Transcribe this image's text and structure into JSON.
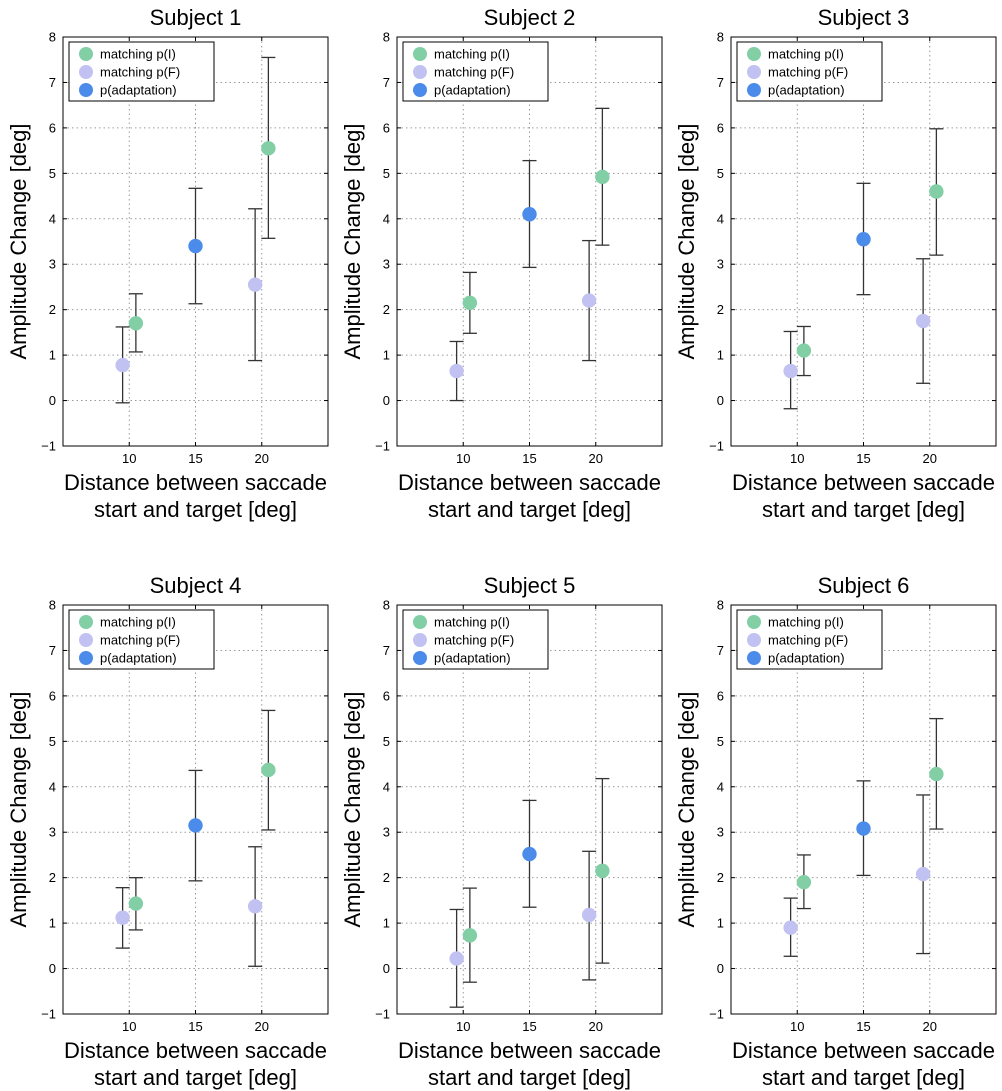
{
  "figure": {
    "xlabel_line1": "Distance between saccade",
    "xlabel_line2": "start and target [deg]",
    "ylabel": "Amplitude Change [deg]"
  },
  "colors": {
    "matching_pI": "#82cfa6",
    "matching_pF": "#c2c2f2",
    "p_adaptation": "#4b8bea",
    "errorbar": "#333333",
    "grid": "#9a9a9a"
  },
  "chart_data": [
    {
      "type": "scatter",
      "title": "Subject 1",
      "xlabel": "Distance between saccade start and target [deg]",
      "ylabel": "Amplitude Change [deg]",
      "xlim": [
        5,
        25
      ],
      "ylim": [
        -1,
        8
      ],
      "xticks": [
        10,
        15,
        20
      ],
      "yticks": [
        -1,
        0,
        1,
        2,
        3,
        4,
        5,
        6,
        7,
        8
      ],
      "grid": true,
      "legend_position": "top-left",
      "series": [
        {
          "name": "matching p(I)",
          "points": [
            {
              "x": 10.5,
              "y": 1.7,
              "lo": 1.07,
              "hi": 2.35
            },
            {
              "x": 20.5,
              "y": 5.55,
              "lo": 3.57,
              "hi": 7.55
            }
          ]
        },
        {
          "name": "matching p(F)",
          "points": [
            {
              "x": 9.5,
              "y": 0.78,
              "lo": -0.05,
              "hi": 1.62
            },
            {
              "x": 19.5,
              "y": 2.55,
              "lo": 0.88,
              "hi": 4.22
            }
          ]
        },
        {
          "name": "p(adaptation)",
          "points": [
            {
              "x": 15,
              "y": 3.4,
              "lo": 2.13,
              "hi": 4.67
            }
          ]
        }
      ]
    },
    {
      "type": "scatter",
      "title": "Subject 2",
      "xlabel": "Distance between saccade start and target [deg]",
      "ylabel": "Amplitude Change [deg]",
      "xlim": [
        5,
        25
      ],
      "ylim": [
        -1,
        8
      ],
      "xticks": [
        10,
        15,
        20
      ],
      "yticks": [
        -1,
        0,
        1,
        2,
        3,
        4,
        5,
        6,
        7,
        8
      ],
      "grid": true,
      "legend_position": "top-left",
      "series": [
        {
          "name": "matching p(I)",
          "points": [
            {
              "x": 10.5,
              "y": 2.15,
              "lo": 1.48,
              "hi": 2.82
            },
            {
              "x": 20.5,
              "y": 4.92,
              "lo": 3.42,
              "hi": 6.43
            }
          ]
        },
        {
          "name": "matching p(F)",
          "points": [
            {
              "x": 9.5,
              "y": 0.65,
              "lo": 0.0,
              "hi": 1.3
            },
            {
              "x": 19.5,
              "y": 2.2,
              "lo": 0.88,
              "hi": 3.52
            }
          ]
        },
        {
          "name": "p(adaptation)",
          "points": [
            {
              "x": 15,
              "y": 4.1,
              "lo": 2.93,
              "hi": 5.28
            }
          ]
        }
      ]
    },
    {
      "type": "scatter",
      "title": "Subject 3",
      "xlabel": "Distance between saccade start and target [deg]",
      "ylabel": "Amplitude Change [deg]",
      "xlim": [
        5,
        25
      ],
      "ylim": [
        -1,
        8
      ],
      "xticks": [
        10,
        15,
        20
      ],
      "yticks": [
        -1,
        0,
        1,
        2,
        3,
        4,
        5,
        6,
        7,
        8
      ],
      "grid": true,
      "legend_position": "top-left",
      "series": [
        {
          "name": "matching p(I)",
          "points": [
            {
              "x": 10.5,
              "y": 1.1,
              "lo": 0.55,
              "hi": 1.63
            },
            {
              "x": 20.5,
              "y": 4.6,
              "lo": 3.2,
              "hi": 5.98
            }
          ]
        },
        {
          "name": "matching p(F)",
          "points": [
            {
              "x": 9.5,
              "y": 0.65,
              "lo": -0.18,
              "hi": 1.52
            },
            {
              "x": 19.5,
              "y": 1.75,
              "lo": 0.38,
              "hi": 3.12
            }
          ]
        },
        {
          "name": "p(adaptation)",
          "points": [
            {
              "x": 15,
              "y": 3.55,
              "lo": 2.33,
              "hi": 4.78
            }
          ]
        }
      ]
    },
    {
      "type": "scatter",
      "title": "Subject 4",
      "xlabel": "Distance between saccade start and target [deg]",
      "ylabel": "Amplitude Change [deg]",
      "xlim": [
        5,
        25
      ],
      "ylim": [
        -1,
        8
      ],
      "xticks": [
        10,
        15,
        20
      ],
      "yticks": [
        -1,
        0,
        1,
        2,
        3,
        4,
        5,
        6,
        7,
        8
      ],
      "grid": true,
      "legend_position": "top-left",
      "series": [
        {
          "name": "matching p(I)",
          "points": [
            {
              "x": 10.5,
              "y": 1.43,
              "lo": 0.85,
              "hi": 2.0
            },
            {
              "x": 20.5,
              "y": 4.37,
              "lo": 3.05,
              "hi": 5.68
            }
          ]
        },
        {
          "name": "matching p(F)",
          "points": [
            {
              "x": 9.5,
              "y": 1.12,
              "lo": 0.45,
              "hi": 1.78
            },
            {
              "x": 19.5,
              "y": 1.37,
              "lo": 0.05,
              "hi": 2.68
            }
          ]
        },
        {
          "name": "p(adaptation)",
          "points": [
            {
              "x": 15,
              "y": 3.15,
              "lo": 1.93,
              "hi": 4.36
            }
          ]
        }
      ]
    },
    {
      "type": "scatter",
      "title": "Subject 5",
      "xlabel": "Distance between saccade start and target [deg]",
      "ylabel": "Amplitude Change [deg]",
      "xlim": [
        5,
        25
      ],
      "ylim": [
        -1,
        8
      ],
      "xticks": [
        10,
        15,
        20
      ],
      "yticks": [
        -1,
        0,
        1,
        2,
        3,
        4,
        5,
        6,
        7,
        8
      ],
      "grid": true,
      "legend_position": "top-left",
      "series": [
        {
          "name": "matching p(I)",
          "points": [
            {
              "x": 10.5,
              "y": 0.73,
              "lo": -0.3,
              "hi": 1.77
            },
            {
              "x": 20.5,
              "y": 2.15,
              "lo": 0.12,
              "hi": 4.18
            }
          ]
        },
        {
          "name": "matching p(F)",
          "points": [
            {
              "x": 9.5,
              "y": 0.22,
              "lo": -0.85,
              "hi": 1.3
            },
            {
              "x": 19.5,
              "y": 1.18,
              "lo": -0.25,
              "hi": 2.58
            }
          ]
        },
        {
          "name": "p(adaptation)",
          "points": [
            {
              "x": 15,
              "y": 2.52,
              "lo": 1.35,
              "hi": 3.7
            }
          ]
        }
      ]
    },
    {
      "type": "scatter",
      "title": "Subject 6",
      "xlabel": "Distance between saccade start and target [deg]",
      "ylabel": "Amplitude Change [deg]",
      "xlim": [
        5,
        25
      ],
      "ylim": [
        -1,
        8
      ],
      "xticks": [
        10,
        15,
        20
      ],
      "yticks": [
        -1,
        0,
        1,
        2,
        3,
        4,
        5,
        6,
        7,
        8
      ],
      "grid": true,
      "legend_position": "top-left",
      "series": [
        {
          "name": "matching p(I)",
          "points": [
            {
              "x": 10.5,
              "y": 1.9,
              "lo": 1.32,
              "hi": 2.5
            },
            {
              "x": 20.5,
              "y": 4.28,
              "lo": 3.07,
              "hi": 5.5
            }
          ]
        },
        {
          "name": "matching p(F)",
          "points": [
            {
              "x": 9.5,
              "y": 0.9,
              "lo": 0.27,
              "hi": 1.55
            },
            {
              "x": 19.5,
              "y": 2.08,
              "lo": 0.33,
              "hi": 3.82
            }
          ]
        },
        {
          "name": "p(adaptation)",
          "points": [
            {
              "x": 15,
              "y": 3.08,
              "lo": 2.05,
              "hi": 4.13
            }
          ]
        }
      ]
    }
  ]
}
